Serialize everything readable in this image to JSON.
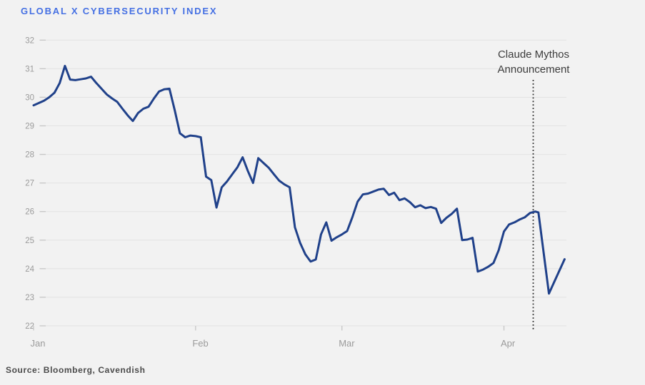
{
  "page": {
    "background": "#f2f2f2"
  },
  "header": {
    "title": "GLOBAL X CYBERSECURITY INDEX",
    "title_color": "#4570e3"
  },
  "annotation": {
    "line1": "Claude Mythos",
    "line2": "Announcement"
  },
  "footer": {
    "source": "Source: Bloomberg, Cavendish"
  },
  "chart_data": {
    "type": "line",
    "title": "GLOBAL X CYBERSECURITY INDEX",
    "xlabel": "",
    "ylabel": "",
    "ylim": [
      22,
      32
    ],
    "y_ticks": [
      32,
      31,
      30,
      29,
      28,
      27,
      26,
      25,
      24,
      23,
      22
    ],
    "x_ticks": [
      {
        "label": "Jan",
        "day": 0
      },
      {
        "label": "Feb",
        "day": 31
      },
      {
        "label": "Mar",
        "day": 59
      },
      {
        "label": "Apr",
        "day": 90
      }
    ],
    "x_unit": "days-since-jan-1",
    "grid": "horizontal",
    "legend": "none",
    "line_color": "#20418a",
    "grid_color": "#e3e3e3",
    "tick_color": "#c6c6c6",
    "axis_label_color": "#9b9b9b",
    "annotation": {
      "text": "Claude Mythos Announcement",
      "day": 95.6,
      "marker": "dotted-vertical-line",
      "line_color": "#2d2d2d"
    },
    "series": [
      {
        "name": "Global X Cybersecurity Index",
        "points": [
          [
            0,
            29.72
          ],
          [
            1,
            29.8
          ],
          [
            2,
            29.88
          ],
          [
            3,
            30.0
          ],
          [
            4,
            30.16
          ],
          [
            5,
            30.5
          ],
          [
            6,
            31.1
          ],
          [
            7,
            30.62
          ],
          [
            8,
            30.6
          ],
          [
            9,
            30.63
          ],
          [
            10,
            30.66
          ],
          [
            11,
            30.72
          ],
          [
            12,
            30.5
          ],
          [
            13,
            30.3
          ],
          [
            14,
            30.1
          ],
          [
            15,
            29.96
          ],
          [
            16,
            29.84
          ],
          [
            17,
            29.6
          ],
          [
            18,
            29.37
          ],
          [
            19,
            29.17
          ],
          [
            20,
            29.45
          ],
          [
            21,
            29.6
          ],
          [
            22,
            29.67
          ],
          [
            23,
            29.95
          ],
          [
            24,
            30.2
          ],
          [
            25,
            30.28
          ],
          [
            26,
            30.3
          ],
          [
            27,
            29.55
          ],
          [
            28,
            28.74
          ],
          [
            29,
            28.6
          ],
          [
            30,
            28.66
          ],
          [
            31,
            28.64
          ],
          [
            32,
            28.6
          ],
          [
            33,
            27.22
          ],
          [
            34,
            27.1
          ],
          [
            35,
            26.14
          ],
          [
            36,
            26.85
          ],
          [
            37,
            27.05
          ],
          [
            38,
            27.3
          ],
          [
            39,
            27.55
          ],
          [
            40,
            27.9
          ],
          [
            41,
            27.42
          ],
          [
            42,
            27.0
          ],
          [
            43,
            27.87
          ],
          [
            44,
            27.7
          ],
          [
            45,
            27.53
          ],
          [
            46,
            27.3
          ],
          [
            47,
            27.08
          ],
          [
            48,
            26.95
          ],
          [
            49,
            26.85
          ],
          [
            50,
            25.45
          ],
          [
            51,
            24.9
          ],
          [
            52,
            24.5
          ],
          [
            53,
            24.25
          ],
          [
            54,
            24.32
          ],
          [
            55,
            25.2
          ],
          [
            56,
            25.62
          ],
          [
            57,
            24.98
          ],
          [
            58,
            25.1
          ],
          [
            59,
            25.2
          ],
          [
            60,
            25.32
          ],
          [
            61,
            25.8
          ],
          [
            62,
            26.35
          ],
          [
            63,
            26.6
          ],
          [
            64,
            26.63
          ],
          [
            65,
            26.7
          ],
          [
            66,
            26.77
          ],
          [
            67,
            26.8
          ],
          [
            68,
            26.58
          ],
          [
            69,
            26.66
          ],
          [
            70,
            26.4
          ],
          [
            71,
            26.46
          ],
          [
            72,
            26.33
          ],
          [
            73,
            26.15
          ],
          [
            74,
            26.22
          ],
          [
            75,
            26.12
          ],
          [
            76,
            26.16
          ],
          [
            77,
            26.1
          ],
          [
            78,
            25.6
          ],
          [
            79,
            25.78
          ],
          [
            80,
            25.92
          ],
          [
            81,
            26.1
          ],
          [
            82,
            25.0
          ],
          [
            83,
            25.02
          ],
          [
            84,
            25.08
          ],
          [
            85,
            23.9
          ],
          [
            86,
            23.97
          ],
          [
            87,
            24.07
          ],
          [
            88,
            24.2
          ],
          [
            89,
            24.65
          ],
          [
            90,
            25.3
          ],
          [
            91,
            25.55
          ],
          [
            92,
            25.62
          ],
          [
            93,
            25.72
          ],
          [
            94,
            25.8
          ],
          [
            95,
            25.95
          ],
          [
            96,
            26.0
          ],
          [
            96.6,
            25.97
          ],
          [
            98.6,
            23.13
          ],
          [
            101.6,
            24.33
          ]
        ]
      }
    ]
  }
}
